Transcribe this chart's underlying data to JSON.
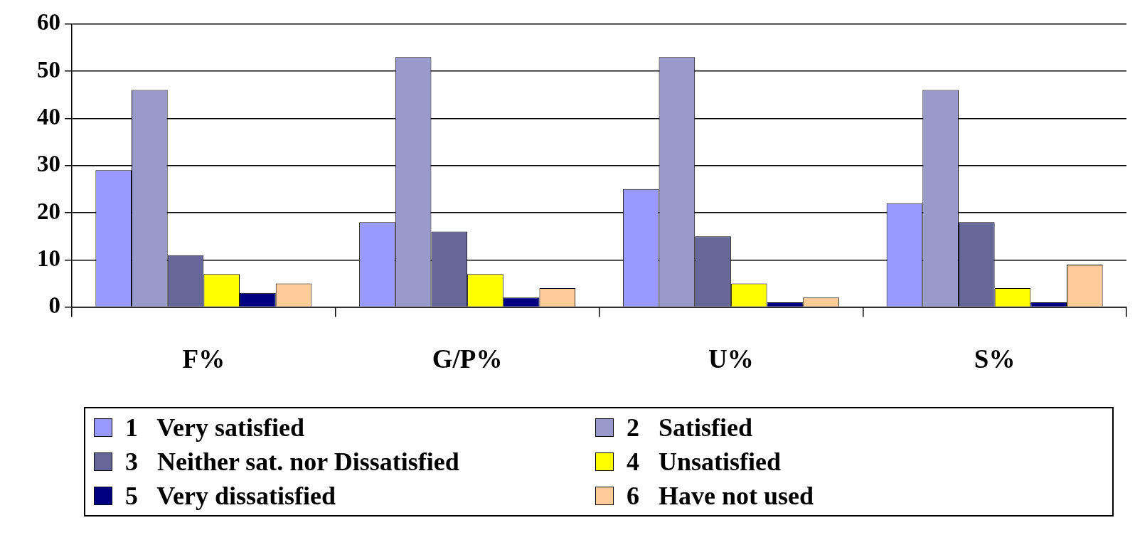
{
  "chart_data": {
    "type": "bar",
    "categories": [
      "F%",
      "G/P%",
      "U%",
      "S%"
    ],
    "series": [
      {
        "name": "1   Very satisfied",
        "color": "#9999ff",
        "values": [
          29,
          18,
          25,
          22
        ]
      },
      {
        "name": "2   Satisfied",
        "color": "#9999cc",
        "values": [
          46,
          53,
          53,
          46
        ]
      },
      {
        "name": "3   Neither sat. nor Dissatisfied",
        "color": "#666699",
        "values": [
          11,
          16,
          15,
          18
        ]
      },
      {
        "name": "4   Unsatisfied",
        "color": "#ffff00",
        "values": [
          7,
          7,
          5,
          4
        ]
      },
      {
        "name": "5   Very dissatisfied",
        "color": "#000080",
        "values": [
          3,
          2,
          1,
          1
        ]
      },
      {
        "name": "6   Have not used",
        "color": "#ffcc99",
        "values": [
          5,
          4,
          2,
          9
        ]
      }
    ],
    "ylim": [
      0,
      60
    ],
    "yticks": [
      0,
      10,
      20,
      30,
      40,
      50,
      60
    ],
    "grid": "y",
    "legend": "bottom"
  }
}
